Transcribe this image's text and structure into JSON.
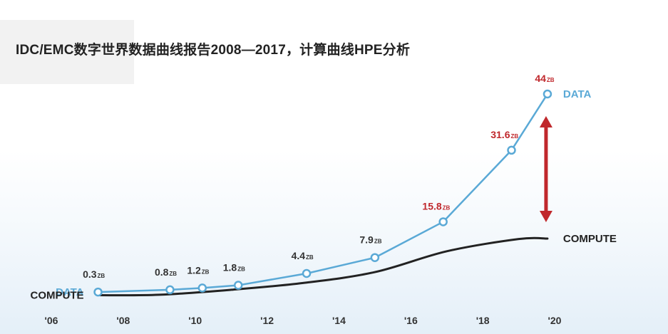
{
  "title": "IDC/EMC数字世界数据曲线报告2008—2017，计算曲线HPE分析",
  "colors": {
    "data_line": "#5aa9d6",
    "compute_line": "#222222",
    "highlight": "#c0282c",
    "text": "#333333"
  },
  "chart_data": {
    "type": "line",
    "x_ticks": [
      "'06",
      "'08",
      "'10",
      "'12",
      "'14",
      "'16",
      "'18",
      "'20"
    ],
    "xlim": [
      2006,
      2020
    ],
    "ylim": [
      0,
      44
    ],
    "unit": "ZB",
    "grid": false,
    "series": [
      {
        "name": "DATA",
        "x": [
          2007.3,
          2009.3,
          2010.2,
          2011.2,
          2013.1,
          2015.0,
          2016.9,
          2018.8,
          2019.8
        ],
        "values": [
          0.3,
          0.8,
          1.2,
          1.8,
          4.4,
          7.9,
          15.8,
          31.6,
          44
        ],
        "labels": [
          {
            "num": "0.3",
            "unit": "ZB",
            "highlight": false
          },
          {
            "num": "0.8",
            "unit": "ZB",
            "highlight": false
          },
          {
            "num": "1.2",
            "unit": "ZB",
            "highlight": false
          },
          {
            "num": "1.8",
            "unit": "ZB",
            "highlight": false
          },
          {
            "num": "4.4",
            "unit": "ZB",
            "highlight": false
          },
          {
            "num": "7.9",
            "unit": "ZB",
            "highlight": false
          },
          {
            "num": "15.8",
            "unit": "ZB",
            "highlight": true
          },
          {
            "num": "31.6",
            "unit": "ZB",
            "highlight": true
          },
          {
            "num": "44",
            "unit": "ZB",
            "highlight": true
          }
        ]
      },
      {
        "name": "COMPUTE",
        "x": [
          2007.3,
          2009.0,
          2011.0,
          2013.0,
          2015.0,
          2017.0,
          2019.0,
          2019.8
        ],
        "values": [
          -0.4,
          -0.3,
          0.8,
          2.3,
          4.7,
          9.3,
          12.0,
          12.1
        ]
      }
    ],
    "annotations": [
      {
        "type": "double-arrow",
        "x": 2019.8,
        "from_series": "DATA",
        "to_series": "COMPUTE",
        "color": "#c0282c"
      }
    ]
  }
}
